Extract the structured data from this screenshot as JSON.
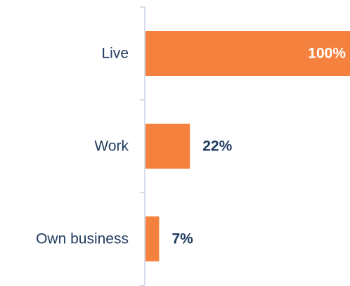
{
  "colors": {
    "bar": "#f5813f",
    "category_text": "#1f3a5f",
    "value_text_outside": "#1f3a5f",
    "value_text_inside": "#ffffff",
    "axis": "#c9d3e3"
  },
  "chart_data": {
    "type": "bar",
    "orientation": "horizontal",
    "categories": [
      "Live",
      "Work",
      "Own business"
    ],
    "values": [
      100,
      22,
      7
    ],
    "labels": [
      "100%",
      "22%",
      "7%"
    ],
    "xlim": [
      0,
      100
    ],
    "grid": false,
    "legend": "none"
  }
}
